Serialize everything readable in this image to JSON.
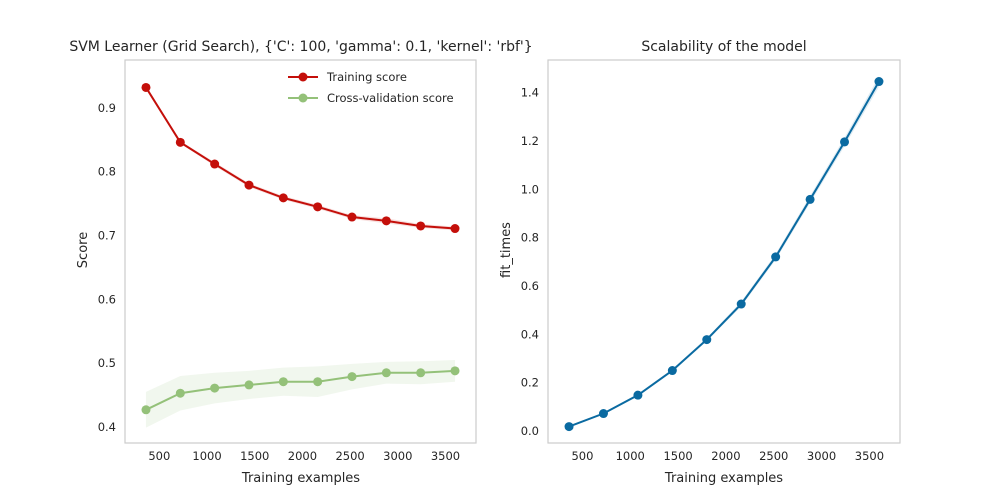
{
  "chart_data": [
    {
      "type": "line",
      "title": "SVM Learner (Grid Search), {'C': 100, 'gamma': 0.1, 'kernel': 'rbf'}",
      "xlabel": "Training examples",
      "ylabel": "Score",
      "xlim": [
        140,
        3820
      ],
      "ylim": [
        0.375,
        0.975
      ],
      "xticks": [
        500,
        1000,
        1500,
        2000,
        2500,
        3000,
        3500
      ],
      "yticks": [
        0.4,
        0.5,
        0.6,
        0.7,
        0.8,
        0.9
      ],
      "ytick_labels": [
        "0.4",
        "0.5",
        "0.6",
        "0.7",
        "0.8",
        "0.9"
      ],
      "grid": false,
      "legend": "top-right",
      "x": [
        360,
        720,
        1080,
        1440,
        1800,
        2160,
        2520,
        2880,
        3240,
        3600
      ],
      "series": [
        {
          "name": "Training score",
          "color": "#c40f0a",
          "values": [
            0.932,
            0.846,
            0.812,
            0.779,
            0.759,
            0.745,
            0.729,
            0.723,
            0.715,
            0.711
          ],
          "std": [
            0.002,
            0.002,
            0.003,
            0.003,
            0.003,
            0.003,
            0.003,
            0.004,
            0.003,
            0.003
          ]
        },
        {
          "name": "Cross-validation score",
          "color": "#94c179",
          "values": [
            0.427,
            0.453,
            0.461,
            0.466,
            0.471,
            0.471,
            0.479,
            0.485,
            0.485,
            0.488
          ],
          "std": [
            0.028,
            0.027,
            0.024,
            0.022,
            0.022,
            0.024,
            0.02,
            0.017,
            0.018,
            0.017
          ]
        }
      ]
    },
    {
      "type": "line",
      "title": "Scalability of the model",
      "xlabel": "Training examples",
      "ylabel": "fit_times",
      "xlim": [
        140,
        3820
      ],
      "ylim": [
        -0.05,
        1.535
      ],
      "xticks": [
        500,
        1000,
        1500,
        2000,
        2500,
        3000,
        3500
      ],
      "yticks": [
        0.0,
        0.2,
        0.4,
        0.6,
        0.8,
        1.0,
        1.2,
        1.4
      ],
      "ytick_labels": [
        "0.0",
        "0.2",
        "0.4",
        "0.6",
        "0.8",
        "1.0",
        "1.2",
        "1.4"
      ],
      "grid": false,
      "x": [
        360,
        720,
        1080,
        1440,
        1800,
        2160,
        2520,
        2880,
        3240,
        3600
      ],
      "series": [
        {
          "color": "#0a6aa1",
          "values": [
            0.018,
            0.072,
            0.148,
            0.25,
            0.378,
            0.525,
            0.72,
            0.958,
            1.196,
            1.446
          ],
          "std": [
            0.003,
            0.004,
            0.005,
            0.006,
            0.007,
            0.01,
            0.012,
            0.015,
            0.018,
            0.022
          ]
        }
      ]
    }
  ]
}
